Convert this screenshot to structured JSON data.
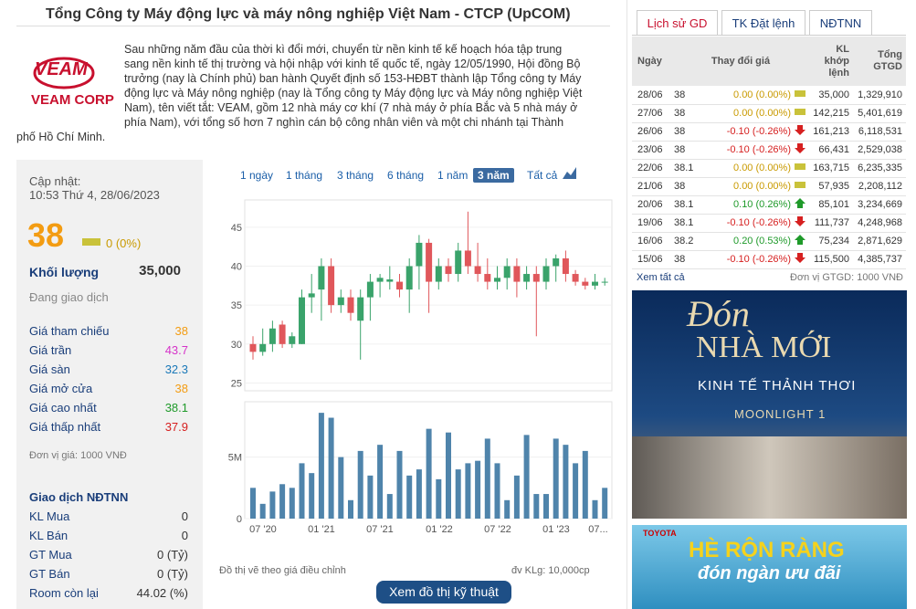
{
  "header": {
    "title": "Tổng Công ty Máy động lực và máy nông nghiệp Việt Nam - CTCP (UpCOM)"
  },
  "company": {
    "logo_top": "VEAM",
    "logo_bottom": "VEAM CORP",
    "description": "Sau những năm đầu của thời kì đổi mới, chuyển từ nền kinh tế kế hoạch hóa tập trung sang nền kinh tế thị trường và hội nhập với kinh tế quốc tế, ngày 12/05/1990, Hội đồng Bộ trưởng (nay là Chính phủ) ban hành Quyết định số 153-HĐBT thành lập Tổng công ty Máy động lực và Máy nông nghiệp (nay là Tổng công ty Máy động lực và Máy nông nghiệp Việt Nam), tên viết tắt: VEAM, gồm 12 nhà máy cơ khí (7 nhà máy ở phía Bắc và 5 nhà máy ở phía Nam), với tổng số hơn 7 nghìn cán bộ công nhân viên và một chi nhánh tại Thành phố Hồ Chí Minh."
  },
  "quote": {
    "update_label": "Cập nhật:",
    "update_time": "10:53 Thứ 4, 28/06/2023",
    "price": "38",
    "change": "0 (0%)",
    "volume_label": "Khối lượng",
    "volume": "35,000",
    "status": "Đang giao dịch",
    "fields": [
      {
        "label": "Giá tham chiếu",
        "value": "38",
        "color": "#f39c12"
      },
      {
        "label": "Giá trần",
        "value": "43.7",
        "color": "#d633c9"
      },
      {
        "label": "Giá sàn",
        "value": "32.3",
        "color": "#1a78b8"
      },
      {
        "label": "Giá mở cửa",
        "value": "38",
        "color": "#f39c12"
      },
      {
        "label": "Giá cao nhất",
        "value": "38.1",
        "color": "#1f9a2a"
      },
      {
        "label": "Giá thấp nhất",
        "value": "37.9",
        "color": "#d62020"
      }
    ],
    "unit": "Đơn vị giá: 1000 VNĐ",
    "foreign_title": "Giao dịch NĐTNN",
    "foreign_fields": [
      {
        "label": "KL Mua",
        "value": "0"
      },
      {
        "label": "KL Bán",
        "value": "0"
      },
      {
        "label": "GT Mua",
        "value": "0 (Tỷ)"
      },
      {
        "label": "GT Bán",
        "value": "0 (Tỷ)"
      },
      {
        "label": "Room còn lại",
        "value": "44.02 (%)"
      }
    ]
  },
  "chart": {
    "ranges": [
      "1 ngày",
      "1 tháng",
      "3 tháng",
      "6 tháng",
      "1 năm",
      "3 năm",
      "Tất cả"
    ],
    "active_range": 5,
    "ylim": [
      24,
      48.5
    ],
    "yticks": [
      25,
      30,
      35,
      40,
      45
    ],
    "vlim": [
      0,
      9500000
    ],
    "vticks": [
      0,
      {
        "value": 5000000,
        "label": "5M"
      }
    ],
    "xlabels": [
      "07 '20",
      "01 '21",
      "07 '21",
      "01 '22",
      "07 '22",
      "01 '23",
      "07..."
    ],
    "up_color": "#3aa36b",
    "down_color": "#e0575b",
    "volume_color": "#4f84ab",
    "candles": [
      {
        "open": 30,
        "close": 29,
        "high": 31,
        "low": 28
      },
      {
        "open": 29,
        "close": 30,
        "high": 32,
        "low": 28.5
      },
      {
        "open": 30,
        "close": 32,
        "high": 33,
        "low": 29
      },
      {
        "open": 32.5,
        "close": 30,
        "high": 33,
        "low": 29.5
      },
      {
        "open": 30,
        "close": 31,
        "high": 31.5,
        "low": 29.5
      },
      {
        "open": 30,
        "close": 36,
        "high": 37,
        "low": 30
      },
      {
        "open": 36,
        "close": 36.5,
        "high": 39,
        "low": 34
      },
      {
        "open": 37,
        "close": 40,
        "high": 41,
        "low": 33
      },
      {
        "open": 40,
        "close": 35,
        "high": 41,
        "low": 34
      },
      {
        "open": 35,
        "close": 36,
        "high": 37,
        "low": 34
      },
      {
        "open": 36,
        "close": 34,
        "high": 37,
        "low": 33
      },
      {
        "open": 33,
        "close": 36,
        "high": 37,
        "low": 28
      },
      {
        "open": 36,
        "close": 38,
        "high": 39,
        "low": 33
      },
      {
        "open": 38,
        "close": 38.5,
        "high": 39,
        "low": 36
      },
      {
        "open": 38,
        "close": 38.3,
        "high": 40,
        "low": 37
      },
      {
        "open": 38,
        "close": 37,
        "high": 39,
        "low": 36
      },
      {
        "open": 37,
        "close": 40,
        "high": 41,
        "low": 34
      },
      {
        "open": 40,
        "close": 43,
        "high": 44,
        "low": 37
      },
      {
        "open": 43,
        "close": 38,
        "high": 43.5,
        "low": 34
      },
      {
        "open": 38,
        "close": 40,
        "high": 41,
        "low": 37
      },
      {
        "open": 40,
        "close": 39,
        "high": 41,
        "low": 38
      },
      {
        "open": 39,
        "close": 42,
        "high": 43,
        "low": 38
      },
      {
        "open": 42,
        "close": 40,
        "high": 47,
        "low": 39
      },
      {
        "open": 40,
        "close": 39,
        "high": 43,
        "low": 38
      },
      {
        "open": 39,
        "close": 38,
        "high": 41,
        "low": 37
      },
      {
        "open": 38,
        "close": 38.5,
        "high": 40,
        "low": 37
      },
      {
        "open": 38.5,
        "close": 40,
        "high": 41,
        "low": 37
      },
      {
        "open": 40,
        "close": 38,
        "high": 41,
        "low": 36
      },
      {
        "open": 38,
        "close": 39,
        "high": 40,
        "low": 37
      },
      {
        "open": 39,
        "close": 38,
        "high": 40,
        "low": 31
      },
      {
        "open": 38,
        "close": 40,
        "high": 41,
        "low": 37
      },
      {
        "open": 40,
        "close": 41,
        "high": 41.5,
        "low": 38
      },
      {
        "open": 41,
        "close": 39,
        "high": 42,
        "low": 38
      },
      {
        "open": 39,
        "close": 38,
        "high": 39.5,
        "low": 37.5
      },
      {
        "open": 38,
        "close": 37.5,
        "high": 38.5,
        "low": 37
      },
      {
        "open": 37.5,
        "close": 38,
        "high": 39,
        "low": 37
      },
      {
        "open": 38,
        "close": 38,
        "high": 38.5,
        "low": 37.5
      }
    ],
    "volumes": [
      2500000,
      1200000,
      2200000,
      2800000,
      2500000,
      4500000,
      3700000,
      8600000,
      8200000,
      5000000,
      1500000,
      5500000,
      3500000,
      6000000,
      2000000,
      5500000,
      3500000,
      4000000,
      7300000,
      3200000,
      7000000,
      4000000,
      4500000,
      4700000,
      6500000,
      4500000,
      1500000,
      3500000,
      6800000,
      2000000,
      2000000,
      6500000,
      6000000,
      4500000,
      5500000,
      1500000,
      2500000
    ],
    "note": "Đồ thị vẽ theo giá điều chỉnh",
    "unit": "đv KLg: 10,000cp",
    "button": "Xem đồ thị kỹ thuật"
  },
  "history": {
    "tabs": [
      "Lịch sử GD",
      "TK Đặt lệnh",
      "NĐTNN"
    ],
    "active_tab": 0,
    "headers": {
      "date": "Ngày",
      "change": "Thay đổi giá",
      "volume": "KL khớp lệnh",
      "value": "Tổng GTGD"
    },
    "rows": [
      [
        "28/06",
        "38",
        "0.00 (0.00%)",
        "35,000",
        "1,329,910"
      ],
      [
        "27/06",
        "38",
        "0.00 (0.00%)",
        "142,215",
        "5,401,619"
      ],
      [
        "26/06",
        "38",
        "-0.10 (-0.26%)",
        "161,213",
        "6,118,531"
      ],
      [
        "23/06",
        "38",
        "-0.10 (-0.26%)",
        "66,431",
        "2,529,038"
      ],
      [
        "22/06",
        "38.1",
        "0.00 (0.00%)",
        "163,715",
        "6,235,335"
      ],
      [
        "21/06",
        "38",
        "0.00 (0.00%)",
        "57,935",
        "2,208,112"
      ],
      [
        "20/06",
        "38.1",
        "0.10 (0.26%)",
        "85,101",
        "3,234,669"
      ],
      [
        "19/06",
        "38.1",
        "-0.10 (-0.26%)",
        "111,737",
        "4,248,968"
      ],
      [
        "16/06",
        "38.2",
        "0.20 (0.53%)",
        "75,234",
        "2,871,629"
      ],
      [
        "15/06",
        "38",
        "-0.10 (-0.26%)",
        "115,500",
        "4,385,737"
      ]
    ],
    "see_all": "Xem tất cả",
    "unit": "Đơn vị GTGD: 1000 VNĐ"
  },
  "ads": {
    "ad1": {
      "line1": "Đón",
      "line2": "NHÀ MỚI",
      "line3": "KINH TẾ THẢNH THƠI",
      "brand": "MOONLIGHT 1"
    },
    "ad2": {
      "brand": "TOYOTA",
      "line1": "HÈ RỘN RÀNG",
      "line2": "đón ngàn ưu đãi"
    }
  }
}
